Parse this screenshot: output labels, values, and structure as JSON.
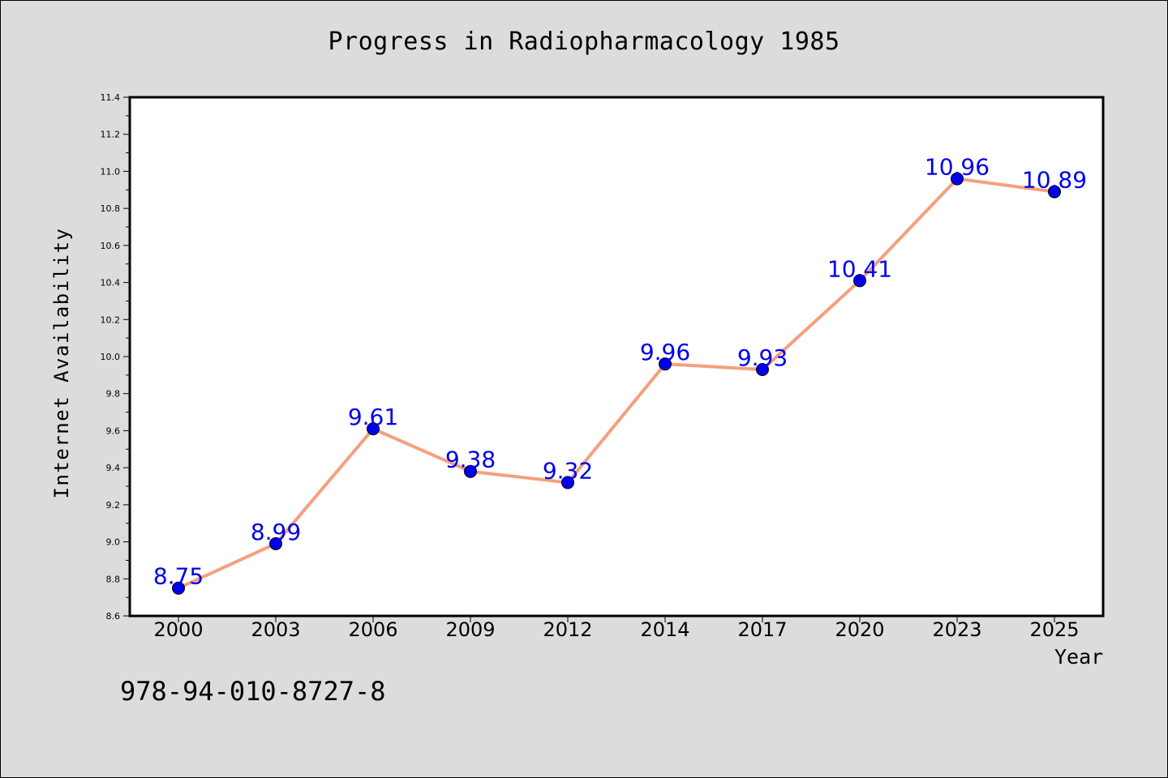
{
  "header": {
    "title": "Progress in Radiopharmacology 1985"
  },
  "footer": {
    "code": "978-94-010-8727-8"
  },
  "colors": {
    "background": "#dcdcdc",
    "plot_area": "#ffffff",
    "line": "#f4a07c",
    "marker": "#0000ee",
    "label": "#0000ee"
  },
  "chart_data": {
    "type": "line",
    "title": "Progress in Radiopharmacology 1985",
    "xlabel": "Year",
    "ylabel": "Internet Availability",
    "categories": [
      "2000",
      "2003",
      "2006",
      "2009",
      "2012",
      "2014",
      "2017",
      "2020",
      "2023",
      "2025"
    ],
    "series": [
      {
        "values": [
          8.75,
          8.99,
          9.61,
          9.38,
          9.32,
          9.96,
          9.93,
          10.41,
          10.96,
          10.89
        ],
        "data_labels": [
          "8.75",
          "8.99",
          "9.61",
          "9.38",
          "9.32",
          "9.96",
          "9.93",
          "10.41",
          "10.96",
          "10.89"
        ]
      }
    ],
    "ylim": [
      8.6,
      11.4
    ],
    "yticks": [
      "8.6",
      "8.8",
      "9.0",
      "9.2",
      "9.4",
      "9.6",
      "9.8",
      "10.0",
      "10.2",
      "10.4",
      "10.6",
      "10.8",
      "11.0",
      "11.2",
      "11.4"
    ],
    "grid": false,
    "legend": "none"
  }
}
